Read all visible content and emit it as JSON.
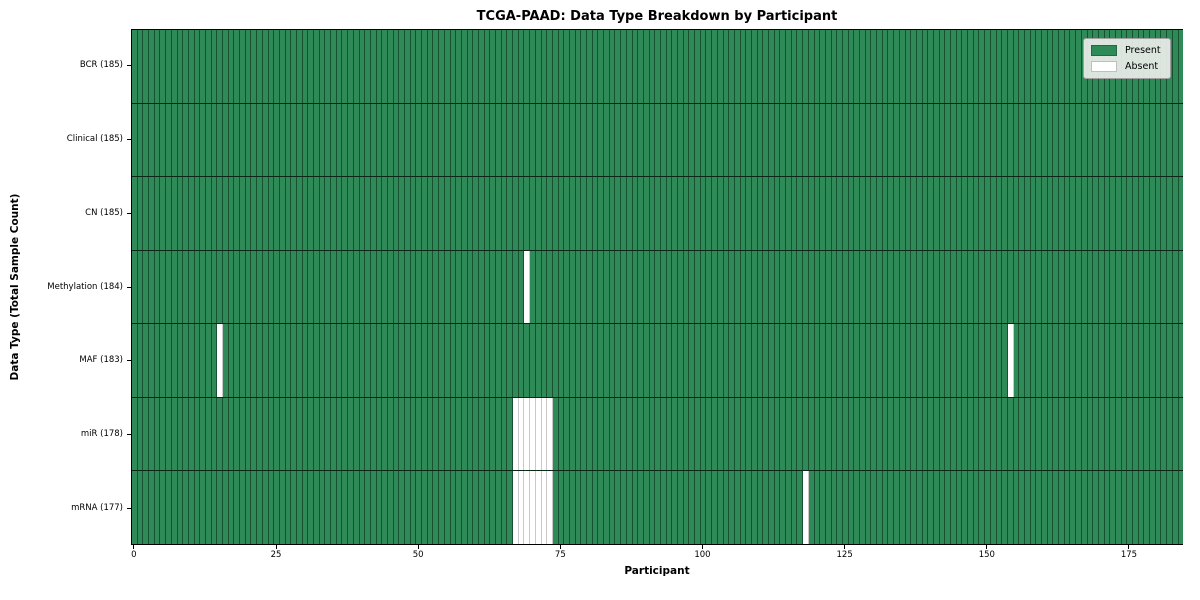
{
  "chart_data": {
    "type": "heatmap",
    "title": "TCGA-PAAD: Data Type Breakdown by Participant",
    "xlabel": "Participant",
    "ylabel": "Data Type (Total Sample Count)",
    "n_participants": 185,
    "xlim": [
      0,
      185
    ],
    "x_ticks": [
      0,
      25,
      50,
      75,
      100,
      125,
      150,
      175
    ],
    "grid": "cell edges visible, black row separators",
    "rows": [
      {
        "data_type": "BCR",
        "label": "BCR (185)",
        "present_count": 185,
        "absent_participants": []
      },
      {
        "data_type": "Clinical",
        "label": "Clinical (185)",
        "present_count": 185,
        "absent_participants": []
      },
      {
        "data_type": "CN",
        "label": "CN (185)",
        "present_count": 185,
        "absent_participants": []
      },
      {
        "data_type": "Methylation",
        "label": "Methylation (184)",
        "present_count": 184,
        "absent_participants": [
          69
        ]
      },
      {
        "data_type": "MAF",
        "label": "MAF (183)",
        "present_count": 183,
        "absent_participants": [
          15,
          154
        ]
      },
      {
        "data_type": "miR",
        "label": "miR (178)",
        "present_count": 178,
        "absent_participants": [
          67,
          68,
          69,
          70,
          71,
          72,
          73
        ]
      },
      {
        "data_type": "mRNA",
        "label": "mRNA (177)",
        "present_count": 177,
        "absent_participants": [
          67,
          68,
          69,
          70,
          71,
          72,
          73,
          118
        ]
      }
    ],
    "legend": {
      "position": "upper right",
      "items": [
        {
          "label": "Present",
          "color": "#2E8B57"
        },
        {
          "label": "Absent",
          "color": "#FFFFFF"
        }
      ]
    },
    "colors": {
      "present": "#2E8B57",
      "absent": "#FFFFFF",
      "background": "#FFFFFF"
    }
  }
}
